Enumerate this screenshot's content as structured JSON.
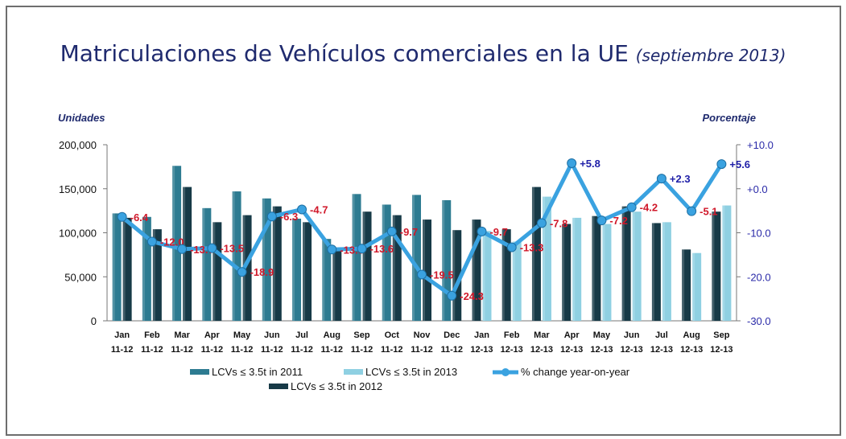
{
  "chart_data": {
    "type": "bar+line",
    "title": "Matriculaciones de Vehículos comerciales en la UE",
    "subtitle": "(septiembre 2013)",
    "ylabel": "Unidades",
    "y2label": "Porcentaje",
    "ylim": [
      0,
      200000
    ],
    "y2lim": [
      -30,
      10
    ],
    "yticks": [
      "0",
      "50,000",
      "100,000",
      "150,000",
      "200,000"
    ],
    "y2ticks": [
      "-30.0",
      "-20.0",
      "-10.0",
      "+0.0",
      "+10.0"
    ],
    "categories": [
      [
        "Jan",
        "11-12"
      ],
      [
        "Feb",
        "11-12"
      ],
      [
        "Mar",
        "11-12"
      ],
      [
        "Apr",
        "11-12"
      ],
      [
        "May",
        "11-12"
      ],
      [
        "Jun",
        "11-12"
      ],
      [
        "Jul",
        "11-12"
      ],
      [
        "Aug",
        "11-12"
      ],
      [
        "Sep",
        "11-12"
      ],
      [
        "Oct",
        "11-12"
      ],
      [
        "Nov",
        "11-12"
      ],
      [
        "Dec",
        "11-12"
      ],
      [
        "Jan",
        "12-13"
      ],
      [
        "Feb",
        "12-13"
      ],
      [
        "Mar",
        "12-13"
      ],
      [
        "Apr",
        "12-13"
      ],
      [
        "May",
        "12-13"
      ],
      [
        "Jun",
        "12-13"
      ],
      [
        "Jul",
        "12-13"
      ],
      [
        "Aug",
        "12-13"
      ],
      [
        "Sep",
        "12-13"
      ]
    ],
    "series": [
      {
        "name": "LCVs ≤ 3.5t in 2011",
        "color": "#2d7b91",
        "values": [
          122000,
          118000,
          176000,
          128000,
          147000,
          139000,
          116000,
          93000,
          144000,
          132000,
          143000,
          137000,
          null,
          null,
          null,
          null,
          null,
          null,
          null,
          null,
          null
        ]
      },
      {
        "name": "LCVs ≤ 3.5t in 2012",
        "color": "#173a47",
        "values": [
          117000,
          104000,
          152000,
          112000,
          120000,
          130000,
          112000,
          81000,
          124000,
          120000,
          115000,
          103000,
          115000,
          104000,
          152000,
          110000,
          119000,
          130000,
          111000,
          81000,
          124000
        ]
      },
      {
        "name": "LCVs ≤ 3.5t in 2013",
        "color": "#8fd0e2",
        "values": [
          null,
          null,
          null,
          null,
          null,
          null,
          null,
          null,
          null,
          null,
          null,
          null,
          102000,
          90000,
          141000,
          117000,
          110000,
          124000,
          112000,
          77000,
          131000
        ]
      },
      {
        "name": "% change year-on-year",
        "color": "#3aa2e0",
        "axis": "right",
        "values": [
          -6.4,
          -12.0,
          -13.7,
          -13.5,
          -18.9,
          -6.3,
          -4.7,
          -13.8,
          -13.6,
          -9.7,
          -19.5,
          -24.3,
          -9.7,
          -13.3,
          -7.8,
          5.8,
          -7.2,
          -4.2,
          2.3,
          -5.1,
          5.6
        ],
        "labels": [
          "-6.4",
          "-12.0",
          "-13.7",
          "-13.5",
          "-18.9",
          "-6.3",
          "-4.7",
          "-13.8",
          "-13.6",
          "-9.7",
          "-19.5",
          "-24.3",
          "-9.7",
          "-13.3",
          "-7.8",
          "+5.8",
          "-7.2",
          "-4.2",
          "+2.3",
          "-5.1",
          "+5.6"
        ]
      }
    ],
    "label_colors": {
      "negative": "#d0182a",
      "positive": "#2020a8"
    },
    "legend": "bottom"
  }
}
